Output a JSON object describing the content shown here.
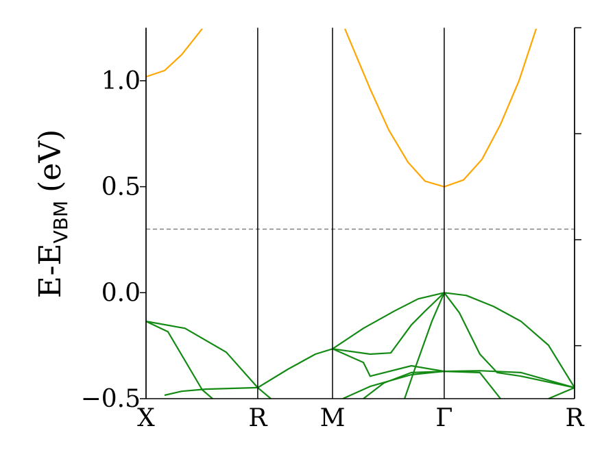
{
  "chart_data": {
    "type": "line",
    "ylabel": {
      "main": "E-E",
      "sub": "VBM",
      "unit": "(eV)"
    },
    "xlim": [
      0,
      2.778
    ],
    "ylim": [
      -0.5,
      1.25
    ],
    "xticks": [
      {
        "value": 0,
        "label": "X"
      },
      {
        "value": 0.724,
        "label": "R"
      },
      {
        "value": 1.209,
        "label": "M"
      },
      {
        "value": 1.933,
        "label": "Γ"
      },
      {
        "value": 2.778,
        "label": "R"
      }
    ],
    "yticks": [
      {
        "value": -0.5,
        "label": "−0.5"
      },
      {
        "value": 0,
        "label": "0.0"
      },
      0.5,
      {
        "value": 1,
        "label": "1.0"
      }
    ],
    "right_minor_yticks": [
      -0.25,
      0.25,
      0.75,
      1.25
    ],
    "vertical_lines_at_xticks": true,
    "hline": {
      "y": 0.3,
      "color": "#808080",
      "dashed": true
    },
    "series": [
      {
        "color": "#ffa500",
        "x": [
          0,
          0.12,
          0.231,
          0.364,
          0.8,
          1.289,
          1.453,
          1.573,
          1.698,
          1.809,
          1.933,
          2.058,
          2.178,
          2.298,
          2.418,
          2.529
        ],
        "values": [
          1.019,
          1.048,
          1.123,
          1.245,
          null,
          1.245,
          0.961,
          0.768,
          0.616,
          0.526,
          0.5,
          0.532,
          0.629,
          0.794,
          1.0,
          1.245
        ]
      },
      {
        "color": "#138a13",
        "x": [
          0,
          0.253,
          0.52,
          0.724
        ],
        "values": [
          -0.135,
          -0.168,
          -0.281,
          -0.448
        ]
      },
      {
        "color": "#138a13",
        "x": [
          0,
          0.142,
          0.364,
          0.431
        ],
        "values": [
          -0.135,
          -0.184,
          -0.458,
          -0.5
        ]
      },
      {
        "color": "#138a13",
        "x": [
          0.12,
          0.231,
          0.387,
          0.724
        ],
        "values": [
          -0.484,
          -0.465,
          -0.455,
          -0.448
        ]
      },
      {
        "color": "#138a13",
        "x": [
          0.724,
          0.92,
          1.098,
          1.209,
          1.409,
          1.609,
          1.764,
          1.933
        ],
        "values": [
          -0.448,
          -0.361,
          -0.29,
          -0.265,
          -0.168,
          -0.087,
          -0.029,
          0
        ]
      },
      {
        "color": "#138a13",
        "x": [
          0.724,
          0.809
        ],
        "values": [
          -0.448,
          -0.5
        ]
      },
      {
        "color": "#138a13",
        "x": [
          1.933,
          2.076,
          2.253,
          2.431,
          2.609,
          2.778
        ],
        "values": [
          0,
          -0.013,
          -0.065,
          -0.135,
          -0.248,
          -0.448
        ]
      },
      {
        "color": "#138a13",
        "x": [
          1.209,
          1.453,
          1.587,
          1.72,
          1.809,
          1.933
        ],
        "values": [
          -0.265,
          -0.29,
          -0.284,
          -0.152,
          -0.087,
          0
        ]
      },
      {
        "color": "#138a13",
        "x": [
          1.209,
          1.409,
          1.453,
          1.72,
          1.933
        ],
        "values": [
          -0.265,
          -0.329,
          -0.394,
          -0.345,
          -0.371
        ]
      },
      {
        "color": "#138a13",
        "x": [
          1.933,
          2.031,
          2.164,
          2.276,
          2.431,
          2.778
        ],
        "values": [
          0,
          -0.094,
          -0.29,
          -0.377,
          -0.394,
          -0.448
        ]
      },
      {
        "color": "#138a13",
        "x": [
          1.409,
          1.542,
          1.72,
          1.933,
          2.164,
          2.431,
          2.778
        ],
        "values": [
          -0.5,
          -0.426,
          -0.377,
          -0.371,
          -0.368,
          -0.377,
          -0.448
        ]
      },
      {
        "color": "#138a13",
        "x": [
          1.276,
          1.453,
          1.72,
          1.933
        ],
        "values": [
          -0.5,
          -0.442,
          -0.387,
          -0.371
        ]
      },
      {
        "color": "#138a13",
        "x": [
          1.933,
          1.853,
          1.742,
          1.676
        ],
        "values": [
          0,
          -0.135,
          -0.361,
          -0.5
        ]
      },
      {
        "color": "#138a13",
        "x": [
          1.933,
          2.164,
          2.298
        ],
        "values": [
          -0.371,
          -0.377,
          -0.5
        ]
      },
      {
        "color": "#138a13",
        "x": [
          2.609,
          2.778
        ],
        "values": [
          -0.5,
          -0.448
        ]
      }
    ]
  }
}
